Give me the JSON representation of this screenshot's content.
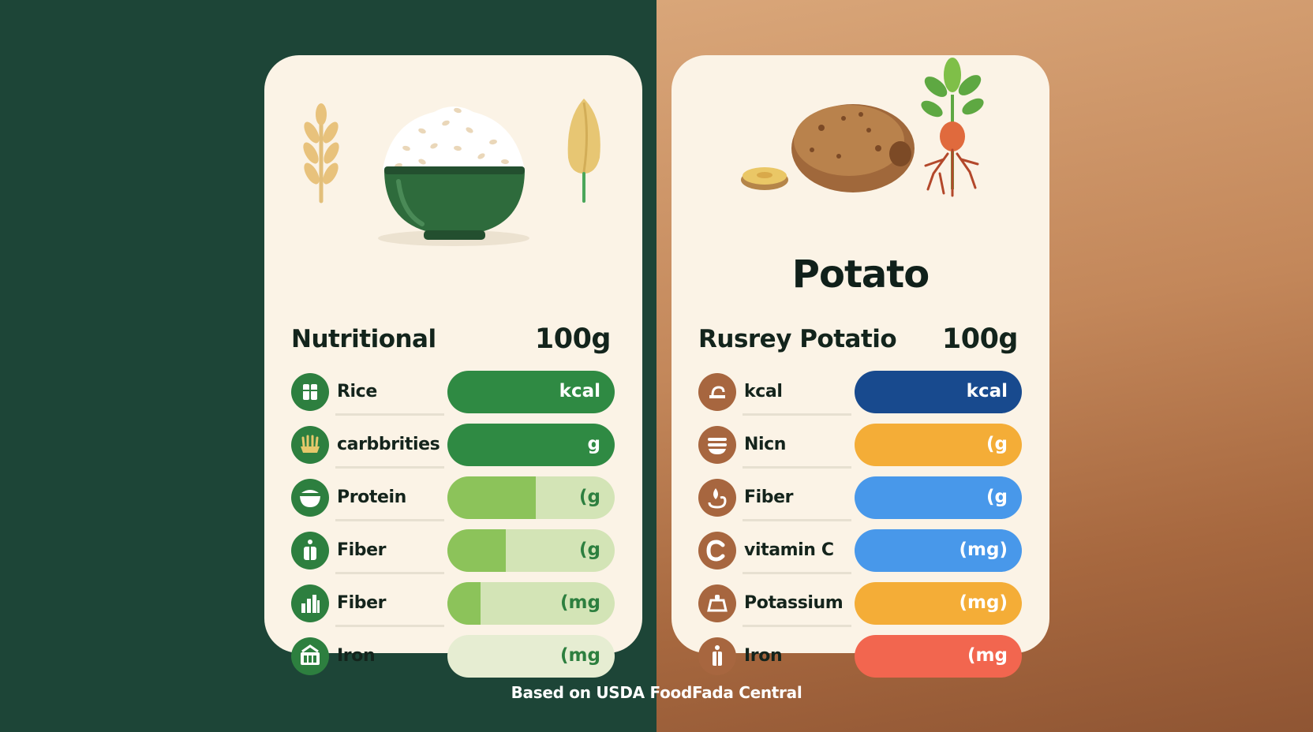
{
  "footer": "Based on USDA FoodFada Central",
  "rice_card": {
    "title": "Nutritional",
    "amount": "100g",
    "rows": [
      {
        "label": "Rice",
        "unit": "kcal",
        "fill": 1.0,
        "icon": "bowl-grain-icon"
      },
      {
        "label": "carbbrities",
        "unit": "g",
        "fill": 1.0,
        "icon": "grain-basket-icon"
      },
      {
        "label": "Protein",
        "unit": "(g",
        "fill": 0.53,
        "icon": "bowl-icon"
      },
      {
        "label": "Fiber",
        "unit": "(g",
        "fill": 0.35,
        "icon": "bottle-icon"
      },
      {
        "label": "Fiber",
        "unit": "(mg",
        "fill": 0.2,
        "icon": "bar-chart-icon"
      },
      {
        "label": "Iron",
        "unit": "(mg",
        "fill": 0.0,
        "icon": "basket-icon"
      }
    ],
    "colors": {
      "accent": "#2d7f3f",
      "bar_dark": "#2f8a43",
      "bar_light": "#8cc35a",
      "track": "#d3e4b6",
      "track_empty": "#e6edd2"
    }
  },
  "potato_card": {
    "name": "Potato",
    "title": "Rusrey Potatio",
    "amount": "100g",
    "rows": [
      {
        "label": "kcal",
        "unit": "kcal",
        "color": "#184a8e",
        "icon": "scoop-icon"
      },
      {
        "label": "Nicn",
        "unit": "(g",
        "color": "#f4ad37",
        "icon": "bowl-lines-icon"
      },
      {
        "label": "Fiber",
        "unit": "(g",
        "color": "#4898ea",
        "icon": "drop-hand-icon"
      },
      {
        "label": "vitamin C",
        "unit": "(mg)",
        "color": "#4898ea",
        "icon": "letter-c-icon"
      },
      {
        "label": "Potassium",
        "unit": "(mg)",
        "color": "#f4ad37",
        "icon": "pot-icon"
      },
      {
        "label": "Iron",
        "unit": "(mg",
        "color": "#f2664f",
        "icon": "person-icon"
      }
    ],
    "colors": {
      "icon_bg": "#a7663f"
    }
  }
}
